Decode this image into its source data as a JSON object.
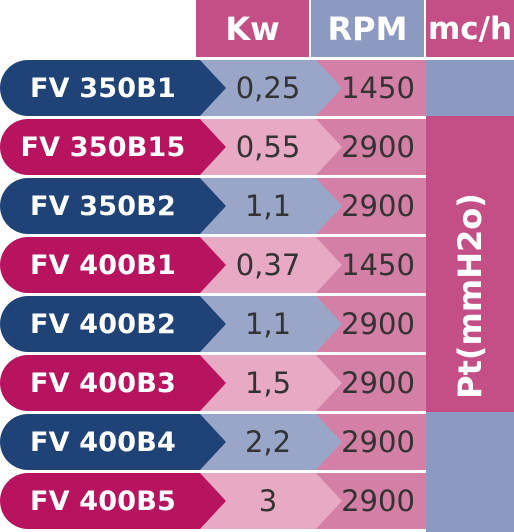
{
  "header": {
    "kw": "Kw",
    "rpm": "RPM",
    "flow": "mc/h"
  },
  "pressure_label": "Pt(mmH2o)",
  "colors": {
    "navy": "#1f4277",
    "magenta": "#b7135f",
    "pink_header": "#c44f86",
    "blue_header": "#8c99c0",
    "blue_cell": "#9aa6c7",
    "pink_cell": "#e8a9c5",
    "rpm_cell": "#d47fa5",
    "pt_blue": "#8c99c0",
    "pt_pink": "#c44f86"
  },
  "rows": [
    {
      "model": "FV 350B1",
      "kw": "0,25",
      "rpm": "1450",
      "theme": "navy"
    },
    {
      "model": "FV 350B15",
      "kw": "0,55",
      "rpm": "2900",
      "theme": "magenta"
    },
    {
      "model": "FV 350B2",
      "kw": "1,1",
      "rpm": "2900",
      "theme": "navy"
    },
    {
      "model": "FV 400B1",
      "kw": "0,37",
      "rpm": "1450",
      "theme": "magenta"
    },
    {
      "model": "FV 400B2",
      "kw": "1,1",
      "rpm": "2900",
      "theme": "navy"
    },
    {
      "model": "FV 400B3",
      "kw": "1,5",
      "rpm": "2900",
      "theme": "magenta"
    },
    {
      "model": "FV 400B4",
      "kw": "2,2",
      "rpm": "2900",
      "theme": "navy"
    },
    {
      "model": "FV 400B5",
      "kw": "3",
      "rpm": "2900",
      "theme": "magenta"
    }
  ]
}
